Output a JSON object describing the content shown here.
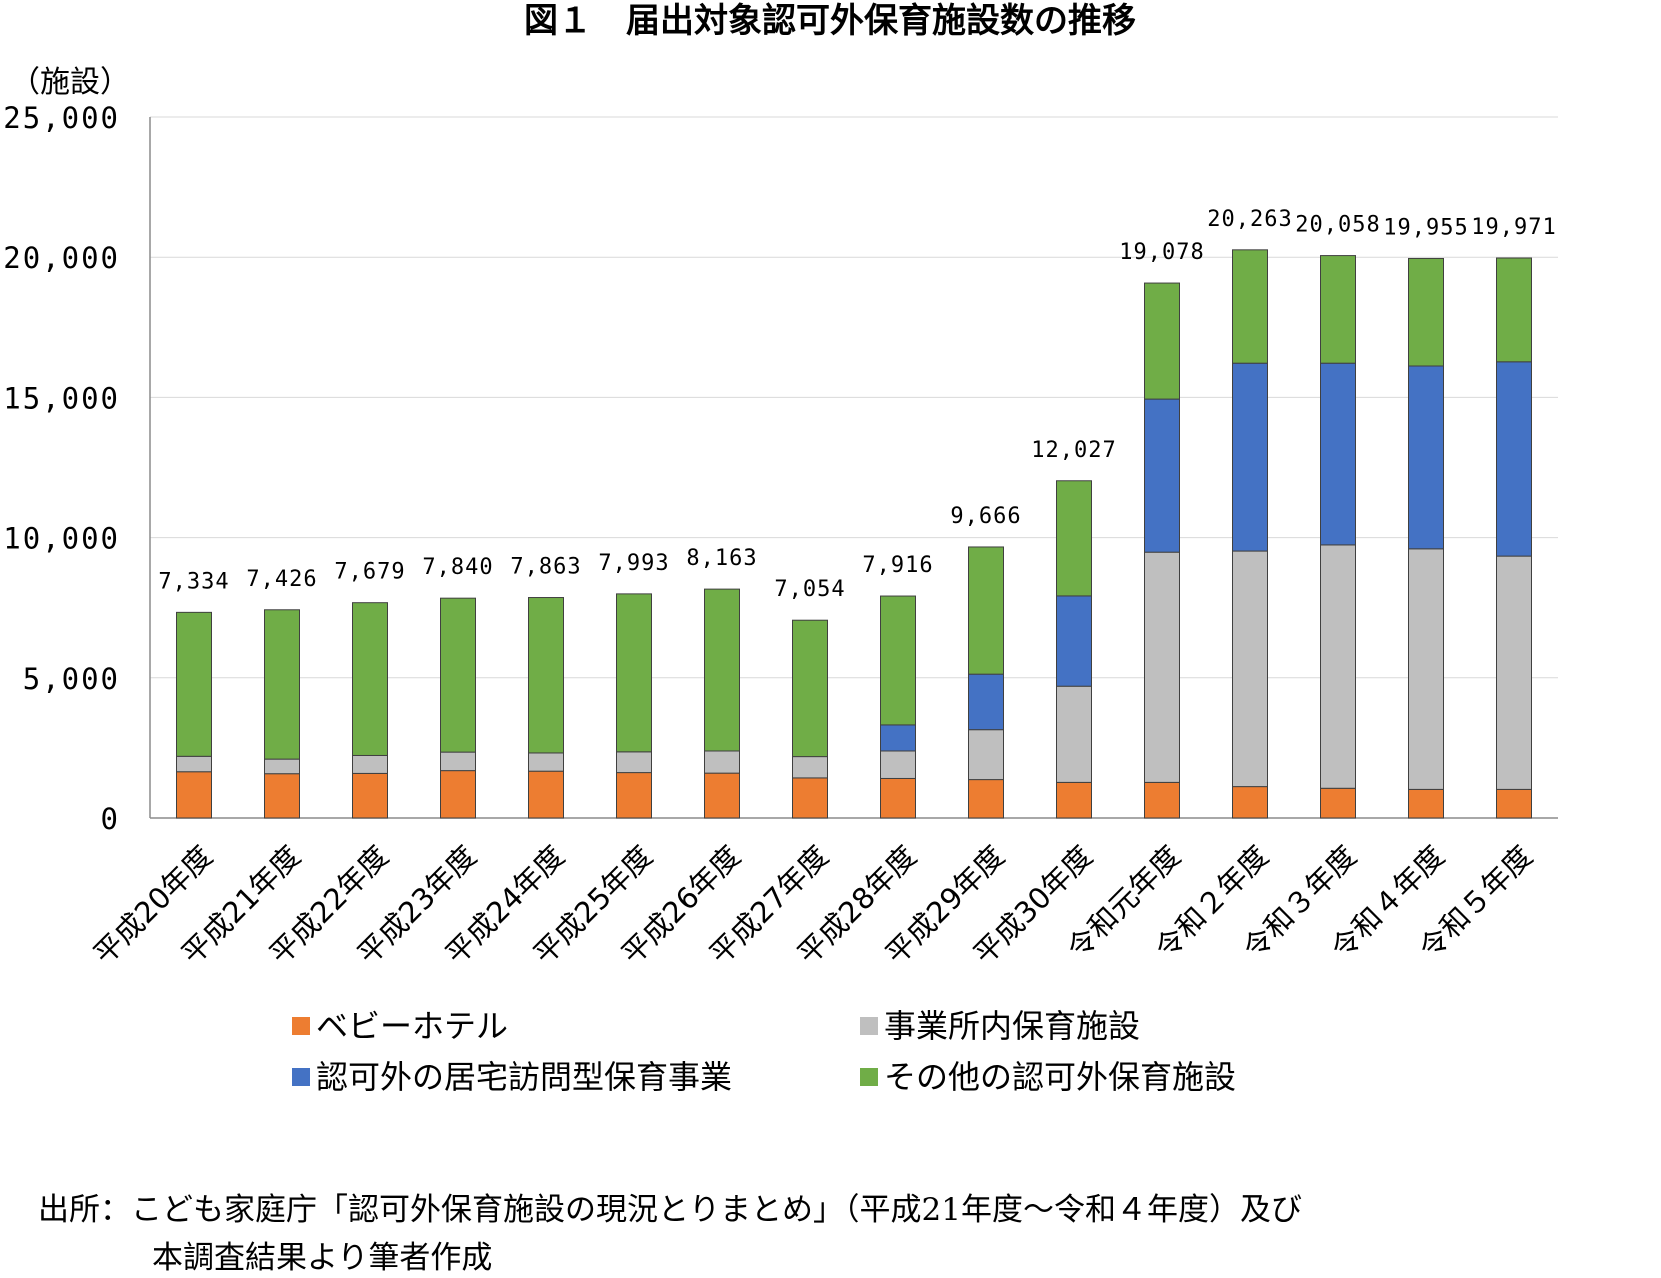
{
  "chart_data": {
    "type": "bar",
    "stacked": true,
    "title": "図１　届出対象認可外保育施設数の推移",
    "ylabel": "（施設）",
    "xlabel": "",
    "ylim": [
      0,
      25000
    ],
    "yticks": [
      0,
      5000,
      10000,
      15000,
      20000,
      25000
    ],
    "ytick_labels": [
      "0",
      "5,000",
      "10,000",
      "15,000",
      "20,000",
      "25,000"
    ],
    "grid": true,
    "legend_position": "bottom",
    "categories": [
      "平成20年度",
      "平成21年度",
      "平成22年度",
      "平成23年度",
      "平成24年度",
      "平成25年度",
      "平成26年度",
      "平成27年度",
      "平成28年度",
      "平成29年度",
      "平成30年度",
      "令和元年度",
      "令和２年度",
      "令和３年度",
      "令和４年度",
      "令和５年度"
    ],
    "series": [
      {
        "name": "ベビーホテル",
        "color": "#ED7D31",
        "values": [
          1650,
          1580,
          1590,
          1690,
          1670,
          1620,
          1600,
          1430,
          1410,
          1370,
          1270,
          1270,
          1120,
          1060,
          1020,
          1020
        ]
      },
      {
        "name": "事業所内保育施設",
        "color": "#BFBFBF",
        "values": [
          550,
          520,
          640,
          660,
          650,
          740,
          790,
          760,
          980,
          1780,
          3430,
          8210,
          8400,
          8680,
          8580,
          8320
        ]
      },
      {
        "name": "認可外の居宅訪問型保育事業",
        "color": "#4472C4",
        "values": [
          0,
          0,
          0,
          0,
          0,
          0,
          0,
          0,
          930,
          1980,
          3220,
          5460,
          6700,
          6480,
          6520,
          6930
        ]
      },
      {
        "name": "その他の認可外保育施設",
        "color": "#70AD47",
        "values": [
          5134,
          5326,
          5449,
          5490,
          5543,
          5633,
          5773,
          4864,
          4596,
          4536,
          4107,
          4138,
          4043,
          3838,
          3835,
          3701
        ]
      }
    ],
    "totals": [
      7334,
      7426,
      7679,
      7840,
      7863,
      7993,
      8163,
      7054,
      7916,
      9666,
      12027,
      19078,
      20263,
      20058,
      19955,
      19971
    ],
    "total_labels": [
      "7,334",
      "7,426",
      "7,679",
      "7,840",
      "7,863",
      "7,993",
      "8,163",
      "7,054",
      "7,916",
      "9,666",
      "12,027",
      "19,078",
      "20,263",
      "20,058",
      "19,955",
      "19,971"
    ]
  },
  "source": {
    "line1": "出所：こども家庭庁「認可外保育施設の現況とりまとめ」（平成21年度～令和４年度）及び",
    "line2": "本調査結果より筆者作成"
  }
}
